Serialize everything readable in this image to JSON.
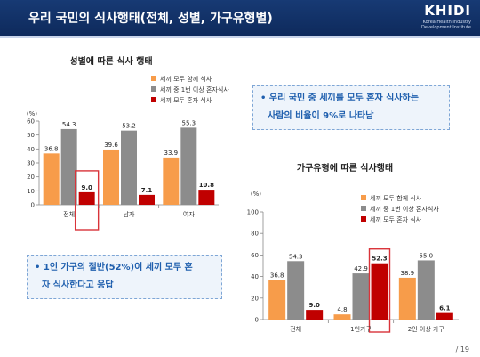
{
  "header": {
    "title": "우리 국민의 식사행태(전체, 성별, 가구유형별)",
    "logo_main": "KHIDI",
    "logo_sub1": "Korea Health Industry",
    "logo_sub2": "Development Institute"
  },
  "callouts": {
    "top_right_line1": "• 우리 국민 중 세끼를 모두 혼자 식사하는",
    "top_right_line2": "사람의 비율이 9%로 나타남",
    "bottom_left_line1": "• 1인 가구의 절반(52%)이  세끼 모두 혼",
    "bottom_left_line2": "자 식사한다고 응답"
  },
  "page_number": "/ 19",
  "colors": {
    "series1": "#f79c4a",
    "series2": "#8c8c8c",
    "series3": "#c00000",
    "highlight": "#d9343a"
  },
  "chart_data": [
    {
      "type": "bar",
      "title": "성별에 따른 식사 행태",
      "unit_label": "(%)",
      "categories": [
        "전체",
        "남자",
        "여자"
      ],
      "ylim": [
        0,
        60
      ],
      "yticks": [
        0,
        10,
        20,
        30,
        40,
        50,
        60
      ],
      "grid": false,
      "legend_position": "top-right",
      "series": [
        {
          "name": "세끼 모두 함께 식사",
          "values": [
            36.8,
            39.6,
            33.9
          ]
        },
        {
          "name": "세끼 중 1번 이상 혼자식사",
          "values": [
            54.3,
            53.2,
            55.3
          ]
        },
        {
          "name": "세끼 모두 혼자 식사",
          "values": [
            9.0,
            7.1,
            10.8
          ]
        }
      ],
      "highlight": {
        "category": "전체",
        "series": "세끼 모두 혼자 식사"
      }
    },
    {
      "type": "bar",
      "title": "가구유형에 따른 식사행태",
      "unit_label": "(%)",
      "categories": [
        "전체",
        "1인가구",
        "2인 이상 가구"
      ],
      "ylim": [
        0,
        100
      ],
      "yticks": [
        0,
        20,
        40,
        60,
        80,
        100
      ],
      "grid": false,
      "legend_position": "top-right",
      "series": [
        {
          "name": "세끼 모두 함께 식사",
          "values": [
            36.8,
            4.8,
            38.9
          ]
        },
        {
          "name": "세끼 중 1번 이상 혼자식사",
          "values": [
            54.3,
            42.9,
            55.0
          ]
        },
        {
          "name": "세끼 모두 혼자 식사",
          "values": [
            9.0,
            52.3,
            6.1
          ]
        }
      ],
      "highlight": {
        "category": "1인가구",
        "series": "세끼 모두 혼자 식사"
      }
    }
  ]
}
